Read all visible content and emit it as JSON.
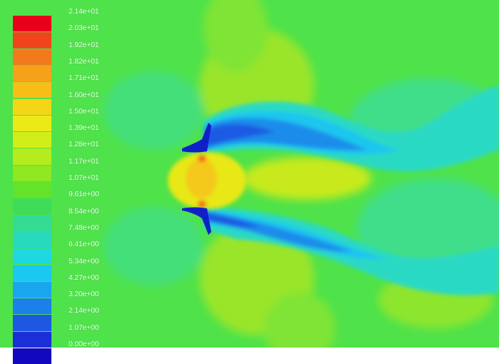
{
  "chart_data": {
    "type": "heatmap",
    "title": "",
    "xlabel": "",
    "ylabel": "",
    "colorbar": {
      "min": 0,
      "max": 21.4,
      "labels": [
        "2.14e+01",
        "2.03e+01",
        "1.92e+01",
        "1.82e+01",
        "1.71e+01",
        "1.60e+01",
        "1.50e+01",
        "1.39e+01",
        "1.28e+01",
        "1.17e+01",
        "1.07e+01",
        "9.61e+00",
        "8.54e+00",
        "7.48e+00",
        "6.41e+00",
        "5.34e+00",
        "4.27e+00",
        "3.20e+00",
        "2.14e+00",
        "1.07e+00",
        "0.00e+00"
      ],
      "colors": [
        "#e8001a",
        "#f0451c",
        "#f27a1c",
        "#f5a11a",
        "#f7be17",
        "#f5d617",
        "#ecea16",
        "#d2ee18",
        "#b4ec1e",
        "#8ee822",
        "#63e32a",
        "#3fdd57",
        "#33db93",
        "#29d9bd",
        "#1ed8e0",
        "#1ac8f0",
        "#1aa6ee",
        "#1b80ea",
        "#1c58e2",
        "#1a2fd8",
        "#1208c0"
      ]
    },
    "background_color": "#4fe24a"
  }
}
